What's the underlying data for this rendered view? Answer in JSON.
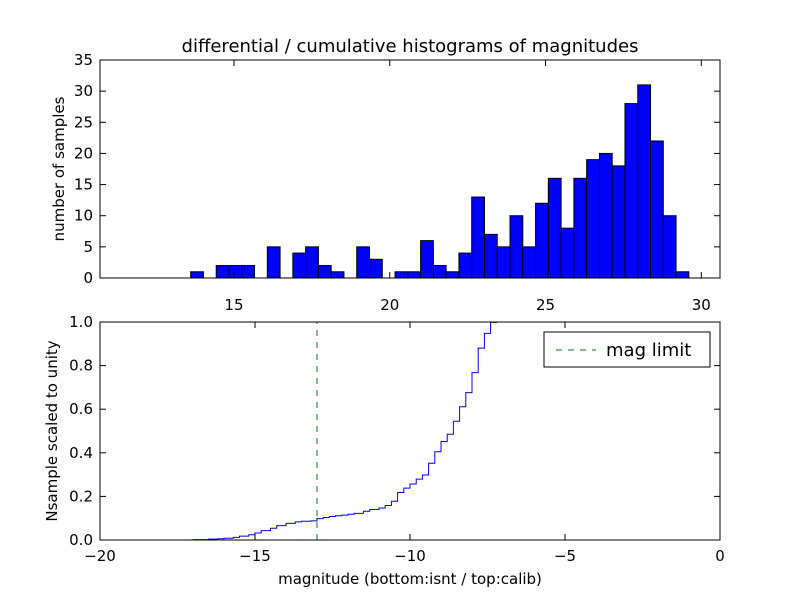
{
  "chart_data": [
    {
      "type": "bar",
      "title": "differential / cumulative histograms of magnitudes",
      "xlabel": "",
      "ylabel": "number of samples",
      "xlim": [
        10.7,
        30.6
      ],
      "ylim": [
        0,
        35
      ],
      "xticks": [
        15,
        20,
        25,
        30
      ],
      "yticks": [
        0,
        5,
        10,
        15,
        20,
        25,
        30,
        35
      ],
      "x_axis_position": "top",
      "bar_color": "#0000ff",
      "bin_width": 0.41,
      "bins": [
        {
          "x": 13.61,
          "count": 1
        },
        {
          "x": 14.43,
          "count": 2
        },
        {
          "x": 14.84,
          "count": 2
        },
        {
          "x": 15.25,
          "count": 2
        },
        {
          "x": 16.07,
          "count": 5
        },
        {
          "x": 16.89,
          "count": 4
        },
        {
          "x": 17.3,
          "count": 5
        },
        {
          "x": 17.71,
          "count": 2
        },
        {
          "x": 18.12,
          "count": 1
        },
        {
          "x": 18.94,
          "count": 5
        },
        {
          "x": 19.35,
          "count": 3
        },
        {
          "x": 20.17,
          "count": 1
        },
        {
          "x": 20.58,
          "count": 1
        },
        {
          "x": 20.99,
          "count": 6
        },
        {
          "x": 21.4,
          "count": 2
        },
        {
          "x": 21.81,
          "count": 1
        },
        {
          "x": 22.22,
          "count": 4
        },
        {
          "x": 22.63,
          "count": 13
        },
        {
          "x": 23.04,
          "count": 7
        },
        {
          "x": 23.45,
          "count": 5
        },
        {
          "x": 23.86,
          "count": 10
        },
        {
          "x": 24.27,
          "count": 5
        },
        {
          "x": 24.68,
          "count": 12
        },
        {
          "x": 25.09,
          "count": 16
        },
        {
          "x": 25.5,
          "count": 8
        },
        {
          "x": 25.91,
          "count": 16
        },
        {
          "x": 26.32,
          "count": 19
        },
        {
          "x": 26.73,
          "count": 20
        },
        {
          "x": 27.14,
          "count": 18
        },
        {
          "x": 27.55,
          "count": 28
        },
        {
          "x": 27.96,
          "count": 31
        },
        {
          "x": 28.37,
          "count": 22
        },
        {
          "x": 28.78,
          "count": 10
        },
        {
          "x": 29.19,
          "count": 1
        }
      ]
    },
    {
      "type": "line",
      "title": "",
      "xlabel": "magnitude (bottom:isnt / top:calib)",
      "ylabel": "Nsample scaled to unity",
      "xlim": [
        -20,
        0
      ],
      "ylim": [
        0,
        1
      ],
      "xticks": [
        -20,
        -15,
        -10,
        -5,
        0
      ],
      "yticks": [
        0.0,
        0.2,
        0.4,
        0.6,
        0.8,
        1.0
      ],
      "legend_position": "top-right",
      "series": [
        {
          "name": "",
          "style": "steps",
          "color": "#0000ff",
          "x": [
            -20,
            -17.0,
            -16.5,
            -16.2,
            -16.0,
            -15.7,
            -15.5,
            -15.2,
            -15.0,
            -14.8,
            -14.5,
            -14.3,
            -14.0,
            -13.7,
            -13.5,
            -13.2,
            -13.0,
            -12.8,
            -12.6,
            -12.4,
            -12.2,
            -12.0,
            -11.8,
            -11.5,
            -11.3,
            -11.0,
            -10.8,
            -10.6,
            -10.4,
            -10.2,
            -10.0,
            -9.8,
            -9.6,
            -9.4,
            -9.2,
            -9.0,
            -8.8,
            -8.6,
            -8.4,
            -8.2,
            -8.0,
            -7.8,
            -7.6,
            -7.4,
            -7.2,
            -7.0,
            0
          ],
          "y": [
            0.0,
            0.002,
            0.004,
            0.006,
            0.008,
            0.012,
            0.018,
            0.024,
            0.032,
            0.043,
            0.054,
            0.066,
            0.076,
            0.083,
            0.086,
            0.088,
            0.098,
            0.103,
            0.108,
            0.111,
            0.114,
            0.118,
            0.122,
            0.132,
            0.14,
            0.147,
            0.158,
            0.178,
            0.218,
            0.238,
            0.257,
            0.279,
            0.298,
            0.352,
            0.405,
            0.452,
            0.485,
            0.545,
            0.611,
            0.676,
            0.768,
            0.88,
            0.948,
            0.998,
            1.0,
            1.0,
            1.0
          ]
        },
        {
          "name": "mag limit",
          "style": "dashed",
          "color": "#008000",
          "x": [
            -13,
            -13
          ],
          "y": [
            0,
            1
          ]
        }
      ]
    }
  ]
}
